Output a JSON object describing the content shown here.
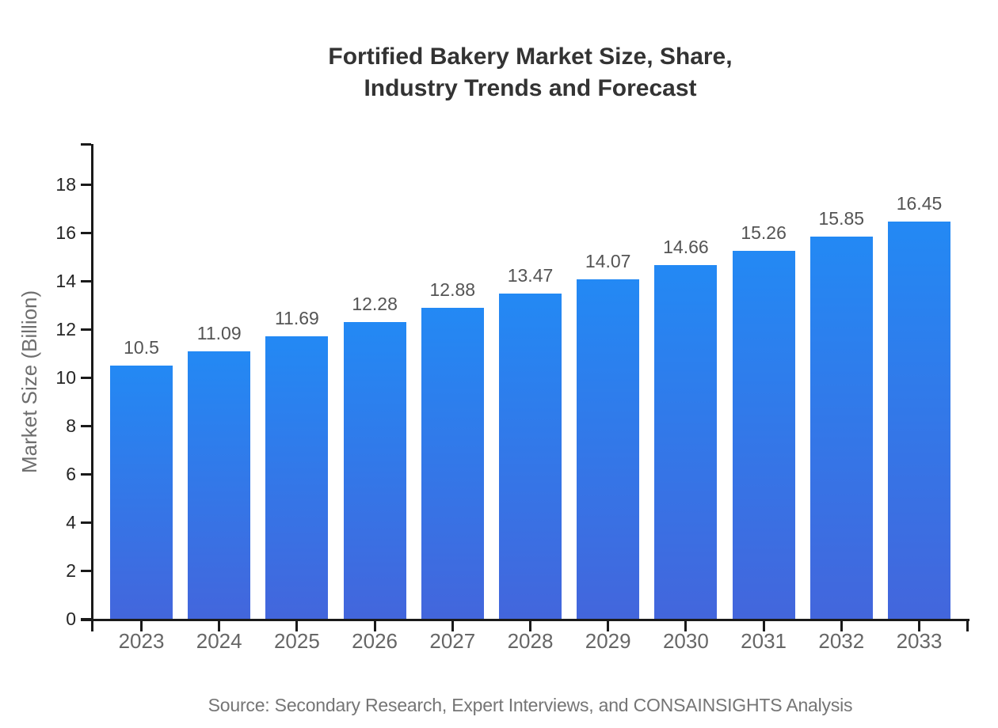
{
  "chart_data": {
    "type": "bar",
    "title": "Fortified Bakery Market Size, Share, Industry Trends and Forecast",
    "title_lines": [
      "Fortified Bakery Market Size, Share,",
      "Industry Trends and Forecast"
    ],
    "ylabel": "Market Size (Billion)",
    "xlabel": "",
    "categories": [
      "2023",
      "2024",
      "2025",
      "2026",
      "2027",
      "2028",
      "2029",
      "2030",
      "2031",
      "2032",
      "2033"
    ],
    "values": [
      10.5,
      11.09,
      11.69,
      12.28,
      12.88,
      13.47,
      14.07,
      14.66,
      15.26,
      15.85,
      16.45
    ],
    "yticks": [
      0,
      2,
      4,
      6,
      8,
      10,
      12,
      14,
      16,
      18
    ],
    "ylim": [
      0,
      19.7
    ],
    "grid": false,
    "legend_position": "none",
    "bar_gradient": {
      "top": "#2389f4",
      "bottom": "#4366dc"
    },
    "colors": {
      "title": "#333333",
      "axis_line": "#1a1a1a",
      "ytick_label": "#262626",
      "xtick_label": "#666666",
      "data_label": "#545454",
      "ylabel": "#6e6e6e",
      "source": "#757575"
    },
    "source_note": "Source: Secondary Research, Expert Interviews, and CONSAINSIGHTS Analysis"
  }
}
